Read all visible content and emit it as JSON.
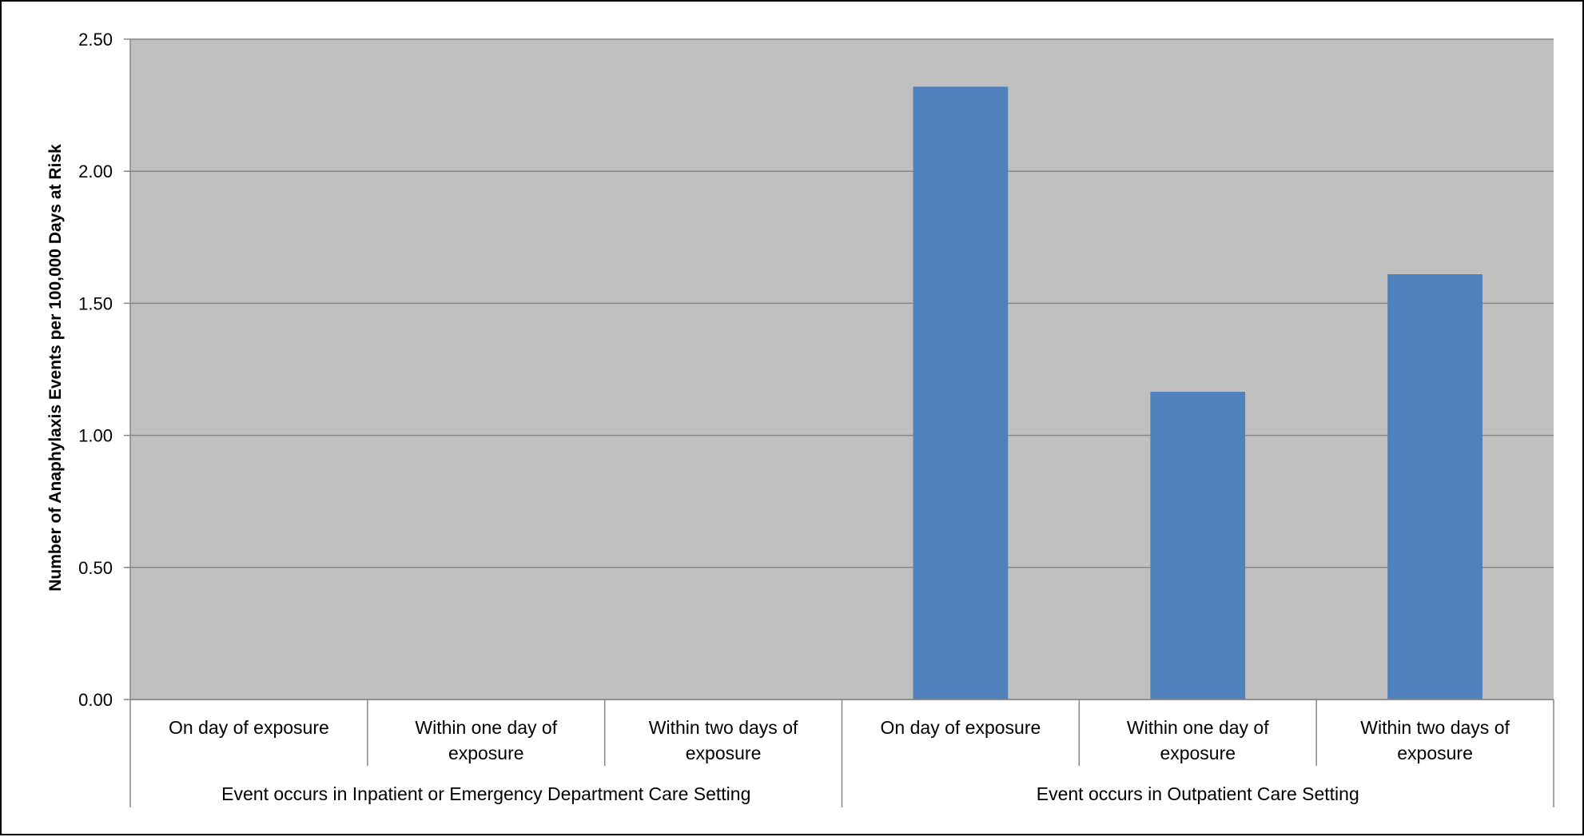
{
  "chart_data": {
    "type": "bar",
    "title": "",
    "xlabel": "",
    "ylabel": "Number of Anaphylaxis Events per 100,000 Days at Risk",
    "ylim": [
      0,
      2.5
    ],
    "yticks": [
      "0.00",
      "0.50",
      "1.00",
      "1.50",
      "2.00",
      "2.50"
    ],
    "grid": true,
    "legend": "none",
    "categories": [
      {
        "label": [
          "On day of exposure"
        ],
        "group": 0
      },
      {
        "label": [
          "Within one day of",
          "exposure"
        ],
        "group": 0
      },
      {
        "label": [
          "Within two days of",
          "exposure"
        ],
        "group": 0
      },
      {
        "label": [
          "On day of exposure"
        ],
        "group": 1
      },
      {
        "label": [
          "Within one day of",
          "exposure"
        ],
        "group": 1
      },
      {
        "label": [
          "Within two days of",
          "exposure"
        ],
        "group": 1
      }
    ],
    "groups": [
      "Event occurs in Inpatient or Emergency Department Care Setting",
      "Event occurs in Outpatient Care Setting"
    ],
    "values": [
      0,
      0,
      0,
      2.32,
      1.165,
      1.61
    ],
    "colors": {
      "plot_bg": "#c0c0c0",
      "bar": "#4f81bd",
      "grid": "#868686",
      "axis": "#868686"
    }
  }
}
